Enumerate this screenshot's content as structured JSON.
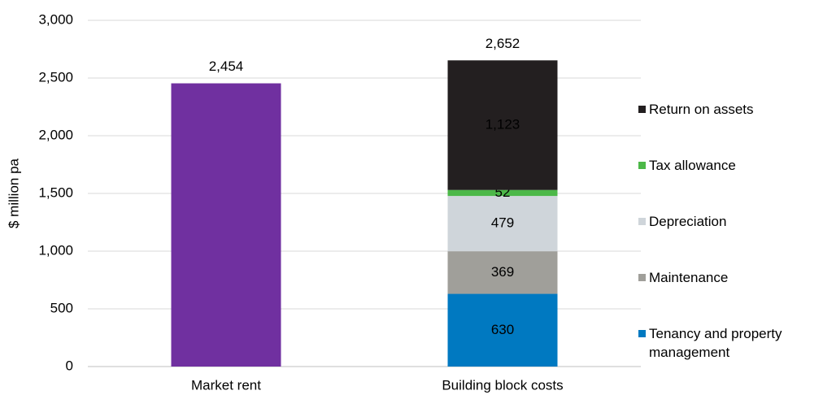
{
  "chart_data": {
    "type": "stacked_bar",
    "ylabel": "$ million pa",
    "categories": [
      "Market rent",
      "Building block costs"
    ],
    "series": [
      {
        "color": "#7030a0",
        "values": [
          2454,
          null
        ],
        "value_labels": [
          "2,454",
          null
        ]
      },
      {
        "name": "Tenancy and property management",
        "color": "#0079c1",
        "values": [
          null,
          630
        ]
      },
      {
        "name": "Maintenance",
        "color": "#a09f9a",
        "values": [
          null,
          369
        ]
      },
      {
        "name": "Depreciation",
        "color": "#cfd5da",
        "values": [
          null,
          479
        ]
      },
      {
        "name": "Tax allowance",
        "color": "#4cb848",
        "values": [
          null,
          52
        ]
      },
      {
        "name": "Return on assets",
        "color": "#231f20",
        "values": [
          null,
          1123
        ],
        "value_labels": [
          null,
          "1,123"
        ]
      }
    ],
    "totals": [
      null,
      2652
    ],
    "total_labels": [
      null,
      "2,652"
    ],
    "ylim": [
      0,
      3000
    ],
    "yticks": [
      0,
      500,
      {
        "value": 1000,
        "label": "1,000"
      },
      {
        "value": 1500,
        "label": "1,500"
      },
      {
        "value": 2000,
        "label": "2,000"
      },
      {
        "value": 2500,
        "label": "2,500"
      },
      {
        "value": 3000,
        "label": "3,000"
      }
    ],
    "grid": true,
    "legend": "right"
  }
}
